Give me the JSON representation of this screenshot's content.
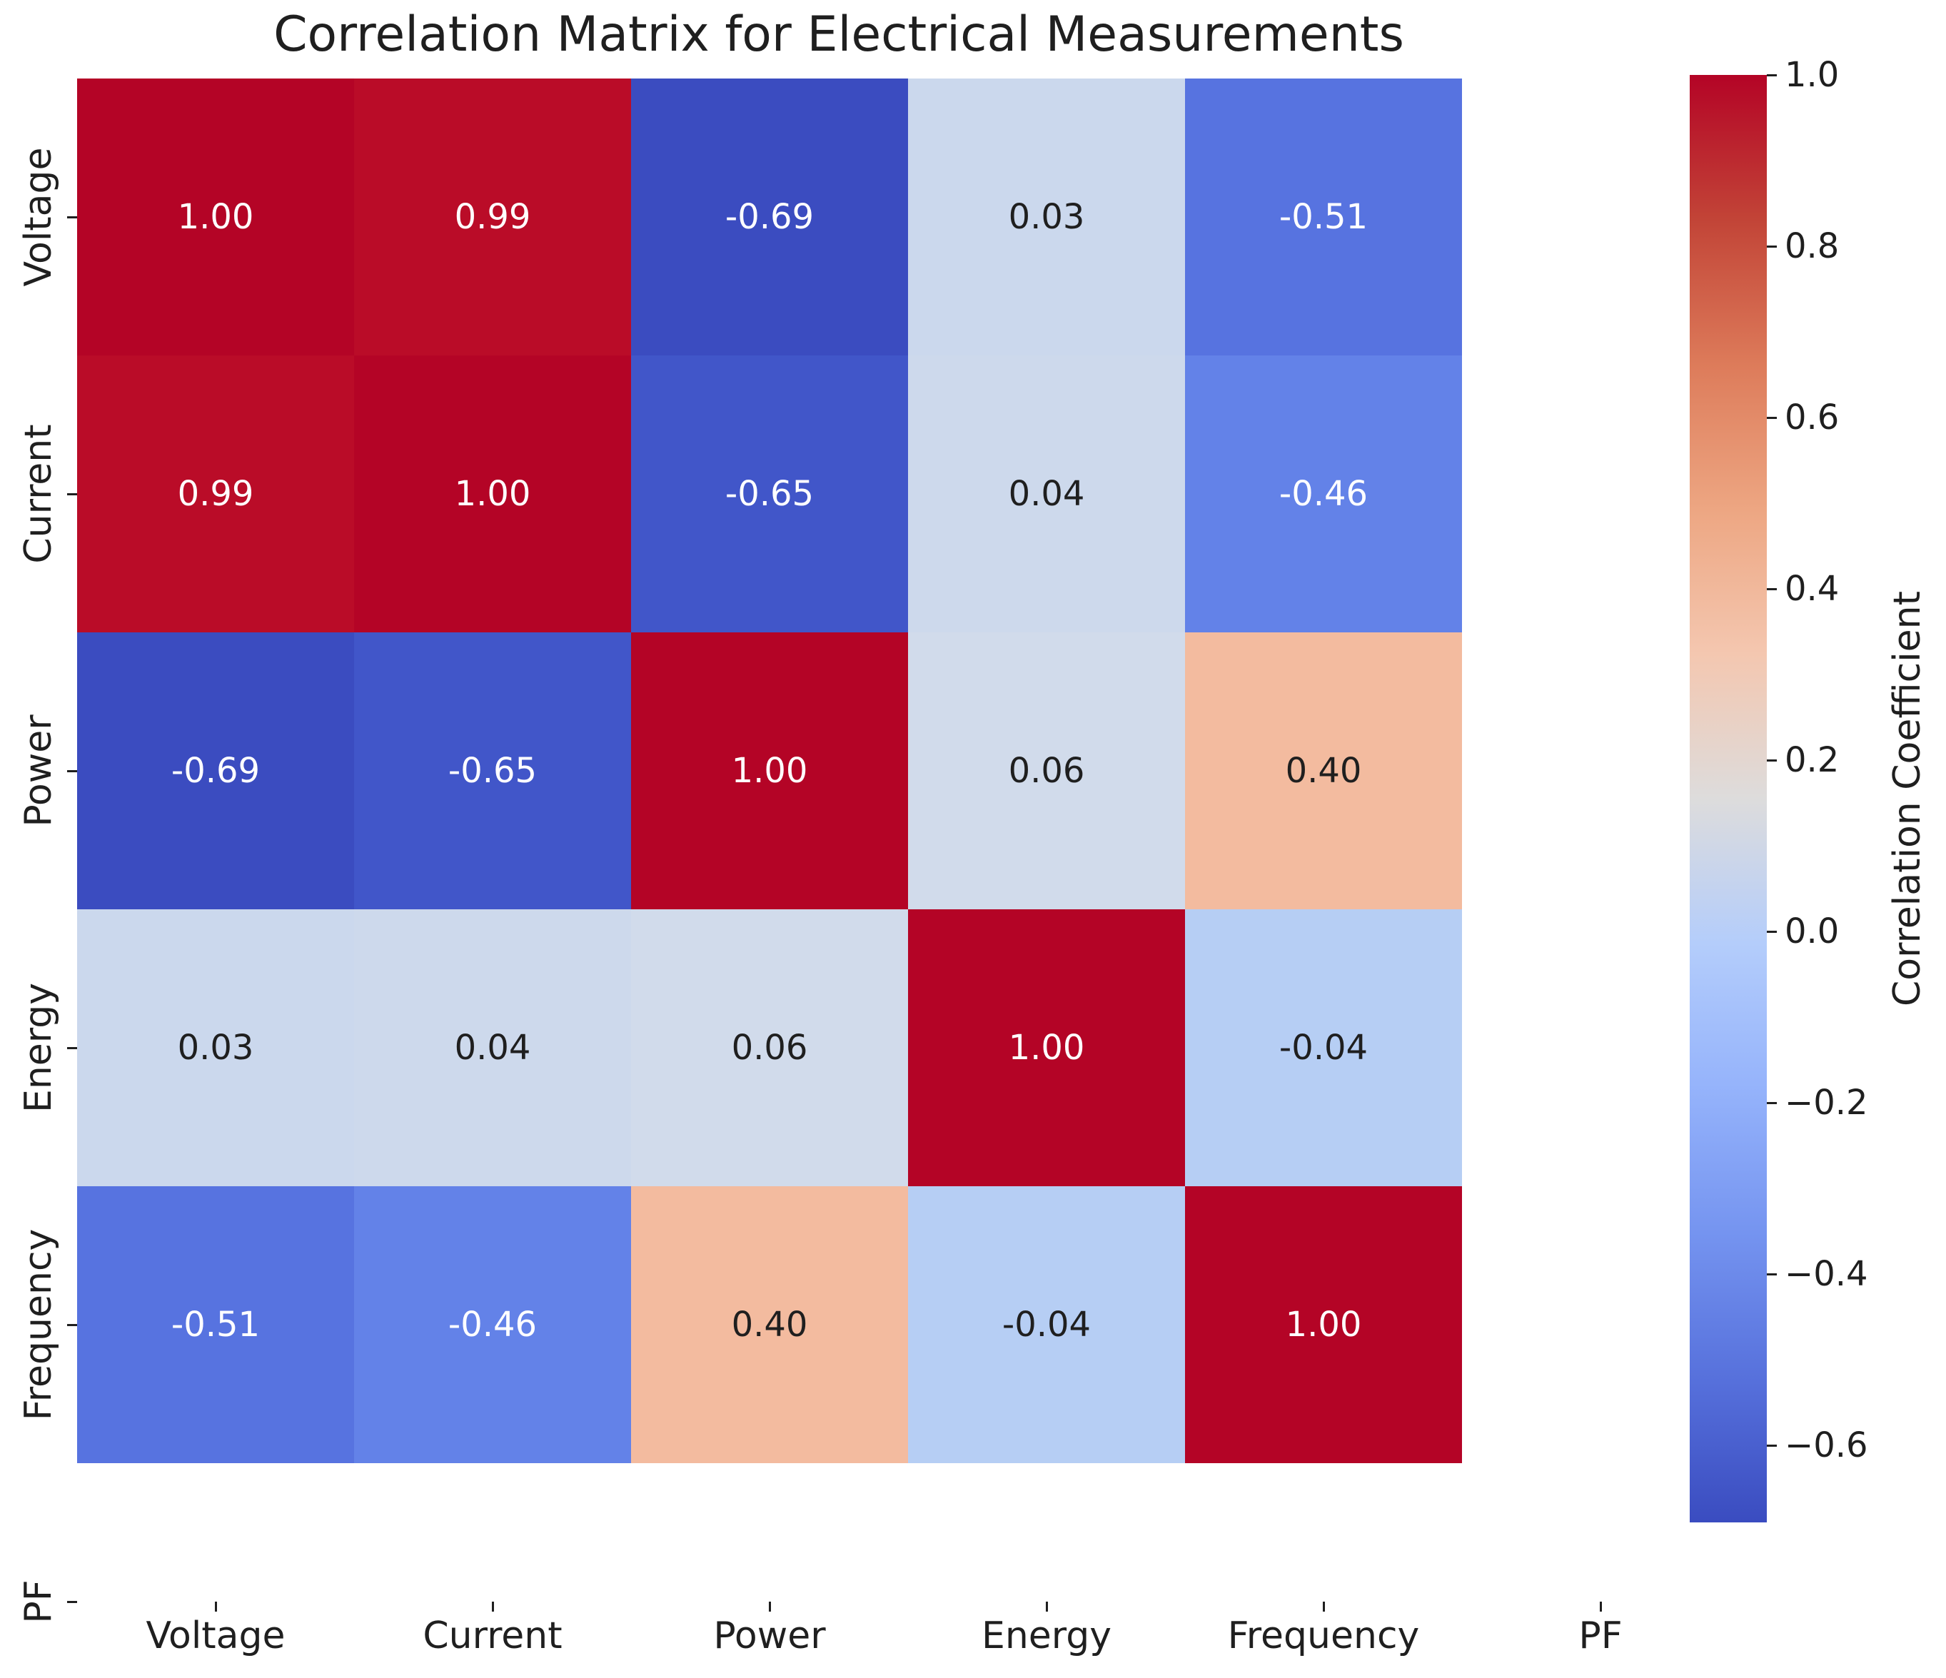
{
  "title": "Correlation Matrix for Electrical Measurements",
  "colors": {
    "background": "#ffffff",
    "text": "#1f1f1f",
    "annotation_light": "#ffffff"
  },
  "chart_data": {
    "type": "heatmap",
    "title": "Correlation Matrix for Electrical Measurements",
    "x_tick_labels": [
      "Voltage",
      "Current",
      "Power",
      "Energy",
      "Frequency",
      "PF"
    ],
    "y_tick_labels": [
      "Voltage",
      "Current",
      "Power",
      "Energy",
      "Frequency",
      "PF"
    ],
    "matrix": [
      [
        1.0,
        0.99,
        -0.69,
        0.03,
        -0.51,
        null
      ],
      [
        0.99,
        1.0,
        -0.65,
        0.04,
        -0.46,
        null
      ],
      [
        -0.69,
        -0.65,
        1.0,
        0.06,
        0.4,
        null
      ],
      [
        0.03,
        0.04,
        0.06,
        1.0,
        -0.04,
        null
      ],
      [
        -0.51,
        -0.46,
        0.4,
        -0.04,
        1.0,
        null
      ],
      [
        null,
        null,
        null,
        null,
        null,
        null
      ]
    ],
    "cell_text": [
      [
        "1.00",
        "0.99",
        "-0.69",
        "0.03",
        "-0.51"
      ],
      [
        "0.99",
        "1.00",
        "-0.65",
        "0.04",
        "-0.46"
      ],
      [
        "-0.69",
        "-0.65",
        "1.00",
        "0.06",
        "0.40"
      ],
      [
        "0.03",
        "0.04",
        "0.06",
        "1.00",
        "-0.04"
      ],
      [
        "-0.51",
        "-0.46",
        "0.40",
        "-0.04",
        "1.00"
      ]
    ],
    "cell_colors": [
      [
        "#b40426",
        "#ba0c28",
        "#3b4cc0",
        "#cbd8ed",
        "#5773e0"
      ],
      [
        "#ba0c28",
        "#b40426",
        "#4156c9",
        "#cdd9ec",
        "#6382e8"
      ],
      [
        "#3b4cc0",
        "#4156c9",
        "#b40426",
        "#d1dbeb",
        "#f3bb9f"
      ],
      [
        "#cbd8ed",
        "#cdd9ec",
        "#d1dbeb",
        "#b40426",
        "#b6cef4"
      ],
      [
        "#5773e0",
        "#6382e8",
        "#f3bb9f",
        "#b6cef4",
        "#b40426"
      ]
    ],
    "cell_text_colors": [
      [
        "#ffffff",
        "#ffffff",
        "#ffffff",
        "#1f1f1f",
        "#ffffff"
      ],
      [
        "#ffffff",
        "#ffffff",
        "#ffffff",
        "#1f1f1f",
        "#ffffff"
      ],
      [
        "#ffffff",
        "#ffffff",
        "#ffffff",
        "#1f1f1f",
        "#1f1f1f"
      ],
      [
        "#1f1f1f",
        "#1f1f1f",
        "#1f1f1f",
        "#ffffff",
        "#1f1f1f"
      ],
      [
        "#ffffff",
        "#ffffff",
        "#1f1f1f",
        "#1f1f1f",
        "#ffffff"
      ]
    ],
    "colormap": "coolwarm",
    "vmin": -0.69,
    "vmax": 1.0,
    "grid": false,
    "colorbar": {
      "label": "Correlation Coefficient",
      "position": "right",
      "tick_values": [
        1.0,
        0.8,
        0.6,
        0.4,
        0.2,
        0.0,
        -0.2,
        -0.4,
        -0.6
      ],
      "tick_labels": [
        "1.0",
        "0.8",
        "0.6",
        "0.4",
        "0.2",
        "0.0",
        "−0.2",
        "−0.4",
        "−0.6"
      ],
      "gradient_top_to_bottom": [
        "#b40426",
        "#c24437",
        "#dd7b5a",
        "#eda682",
        "#f4c7b0",
        "#dddcdc",
        "#b4cdfb",
        "#95b3fb",
        "#7594f0",
        "#5771dc",
        "#3a4cc0"
      ]
    }
  }
}
